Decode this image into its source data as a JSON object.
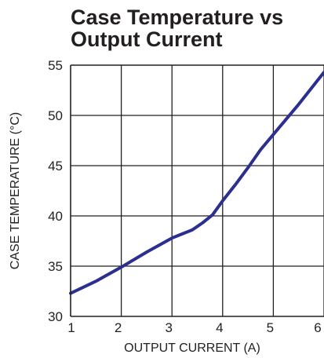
{
  "chart_data": {
    "type": "line",
    "title_lines": [
      "Case Temperature vs",
      "Output Current"
    ],
    "xlabel": "OUTPUT CURRENT (A)",
    "ylabel": "CASE TEMPERATURE (°C)",
    "xlim": [
      1,
      6
    ],
    "ylim": [
      30,
      55
    ],
    "x_ticks": [
      1,
      2,
      3,
      4,
      5,
      6
    ],
    "y_ticks": [
      30,
      35,
      40,
      45,
      50,
      55
    ],
    "grid": true,
    "series": [
      {
        "color": "#2b2f8f",
        "x": [
          1.0,
          1.5,
          2.0,
          2.5,
          3.0,
          3.2,
          3.4,
          3.6,
          3.8,
          4.0,
          4.25,
          4.5,
          4.75,
          5.0,
          5.5,
          6.0
        ],
        "y": [
          32.3,
          33.5,
          34.9,
          36.4,
          37.8,
          38.2,
          38.6,
          39.3,
          40.1,
          41.5,
          43.1,
          44.8,
          46.6,
          48.1,
          51.1,
          54.3
        ]
      }
    ]
  }
}
